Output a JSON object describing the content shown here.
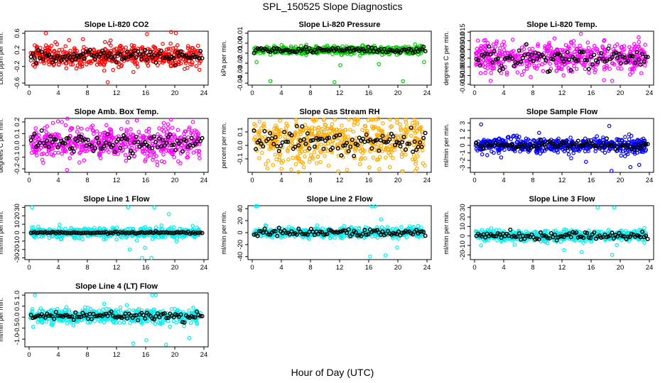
{
  "figure": {
    "title": "SPL_150525  Slope Diagnostics",
    "xlabel": "Hour of Day (UTC)"
  },
  "chart_data": [
    {
      "type": "scatter",
      "title": "Slope Li-820 CO2",
      "ylabel": "Licor ppm per min.",
      "color": "#ff0000",
      "xlim": [
        0,
        24
      ],
      "ylim": [
        -0.65,
        0.65
      ],
      "xticks": [
        "0",
        "4",
        "8",
        "12",
        "16",
        "20",
        "24"
      ],
      "yticks": [
        "-0.6",
        "-0.2",
        "0.2",
        "0.6"
      ],
      "ytick_values": [
        -0.6,
        -0.2,
        0.2,
        0.6
      ],
      "center": 0.05,
      "spread": 0.13,
      "mean_spread": 0.07,
      "outliers": [
        [
          2.3,
          0.6
        ],
        [
          10.8,
          -0.58
        ],
        [
          16.2,
          0.58
        ],
        [
          19.5,
          0.63
        ]
      ]
    },
    {
      "type": "scatter",
      "title": "Slope Li-820 Pressure",
      "ylabel": "kPa per min.",
      "color": "#00cc00",
      "xlim": [
        0,
        24
      ],
      "ylim": [
        -0.042,
        0.012
      ],
      "xticks": [
        "0",
        "4",
        "8",
        "12",
        "16",
        "20",
        "24"
      ],
      "yticks": [
        "-0.04",
        "-0.03",
        "-0.02",
        "-0.01",
        "0.00",
        "0.01"
      ],
      "ytick_values": [
        -0.04,
        -0.03,
        -0.02,
        -0.01,
        0.0,
        0.01
      ],
      "center": -0.007,
      "spread": 0.002,
      "mean_spread": 0.0015,
      "outliers": [
        [
          0.6,
          -0.019
        ],
        [
          2.5,
          -0.038
        ],
        [
          11.3,
          -0.039
        ],
        [
          12.1,
          -0.022
        ],
        [
          17.4,
          -0.021
        ],
        [
          20.7,
          -0.038
        ],
        [
          23.6,
          -0.019
        ]
      ]
    },
    {
      "type": "scatter",
      "title": "Slope Li-820 Temp.",
      "ylabel": "degrees C per min.",
      "color": "#ff00ff",
      "xlim": [
        0,
        24
      ],
      "ylim": [
        -0.0155,
        0.0155
      ],
      "xticks": [
        "0",
        "4",
        "8",
        "12",
        "16",
        "20",
        "24"
      ],
      "yticks": [
        "-0.015",
        "-0.010",
        "-0.005",
        "0.000",
        "0.005",
        "0.010",
        "0.015"
      ],
      "ytick_values": [
        -0.015,
        -0.01,
        -0.005,
        0.0,
        0.005,
        0.01,
        0.015
      ],
      "center": 0.0005,
      "spread": 0.0045,
      "mean_spread": 0.003,
      "outliers": [
        [
          14.6,
          0.014
        ],
        [
          2.2,
          -0.013
        ],
        [
          18.9,
          -0.013
        ]
      ]
    },
    {
      "type": "scatter",
      "title": "Slope Amb. Box Temp.",
      "ylabel": "degrees C per min.",
      "color": "#ff00ff",
      "xlim": [
        0,
        24
      ],
      "ylim": [
        -0.23,
        0.23
      ],
      "xticks": [
        "0",
        "4",
        "8",
        "12",
        "16",
        "20",
        "24"
      ],
      "yticks": [
        "-0.2",
        "-0.1",
        "0.0",
        "0.1",
        "0.2"
      ],
      "ytick_values": [
        -0.2,
        -0.1,
        0.0,
        0.1,
        0.2
      ],
      "center": 0.02,
      "spread": 0.07,
      "mean_spread": 0.045,
      "outliers": [
        [
          4.5,
          0.2
        ],
        [
          5.2,
          -0.21
        ],
        [
          22.5,
          0.2
        ]
      ]
    },
    {
      "type": "scatter",
      "title": "Slope Gas Stream RH",
      "ylabel": "percent per min.",
      "color": "#ffaa00",
      "xlim": [
        0,
        24
      ],
      "ylim": [
        -0.2,
        0.2
      ],
      "xticks": [
        "0",
        "4",
        "8",
        "12",
        "16",
        "20",
        "24"
      ],
      "yticks": [
        "-0.1",
        "0.0",
        "0.1"
      ],
      "ytick_values": [
        -0.1,
        0.0,
        0.1
      ],
      "center": 0.03,
      "spread": 0.09,
      "mean_spread": 0.05,
      "outliers": [
        [
          9.8,
          0.19
        ],
        [
          19.9,
          0.17
        ],
        [
          2.1,
          -0.17
        ],
        [
          23.7,
          -0.15
        ]
      ]
    },
    {
      "type": "scatter",
      "title": "Slope Sample Flow",
      "ylabel": "ml/min per min.",
      "color": "#0000ff",
      "xlim": [
        0,
        24
      ],
      "ylim": [
        -3.6,
        3.6
      ],
      "xticks": [
        "0",
        "4",
        "8",
        "12",
        "16",
        "20",
        "24"
      ],
      "yticks": [
        "-3",
        "-2",
        "-1",
        "0",
        "1",
        "2",
        "3"
      ],
      "ytick_values": [
        -3,
        -2,
        -1,
        0,
        1,
        2,
        3
      ],
      "center": 0.0,
      "spread": 0.55,
      "mean_spread": 0.3,
      "outliers": [
        [
          0.9,
          2.8
        ],
        [
          18.5,
          2.6
        ],
        [
          18.8,
          -3.4
        ],
        [
          21.4,
          -2.9
        ],
        [
          22.6,
          -2.6
        ],
        [
          15.3,
          -2.2
        ]
      ]
    },
    {
      "type": "scatter",
      "title": "Slope Line 1 Flow",
      "ylabel": "ml/min per min.",
      "color": "#00eeee",
      "xlim": [
        0,
        24
      ],
      "ylim": [
        -32,
        32
      ],
      "xticks": [
        "0",
        "4",
        "8",
        "12",
        "16",
        "20",
        "24"
      ],
      "yticks": [
        "-30",
        "-20",
        "-10",
        "0",
        "10",
        "20",
        "30"
      ],
      "ytick_values": [
        -30,
        -20,
        -10,
        0,
        10,
        20,
        30
      ],
      "center": 0.0,
      "spread": 3.0,
      "mean_spread": 0.6,
      "outliers": [
        [
          0.4,
          30
        ],
        [
          13.6,
          30
        ],
        [
          13.8,
          -20
        ],
        [
          15.5,
          -30
        ],
        [
          16.8,
          -30
        ],
        [
          17.2,
          30
        ],
        [
          19.2,
          22
        ],
        [
          15.9,
          -18
        ]
      ]
    },
    {
      "type": "scatter",
      "title": "Slope Line 2 Flow",
      "ylabel": "ml/min per min.",
      "color": "#00eeee",
      "xlim": [
        0,
        24
      ],
      "ylim": [
        -45,
        45
      ],
      "xticks": [
        "0",
        "4",
        "8",
        "12",
        "16",
        "20",
        "24"
      ],
      "yticks": [
        "-40",
        "-20",
        "0",
        "20",
        "40"
      ],
      "ytick_values": [
        -40,
        -20,
        0,
        20,
        40
      ],
      "center": 0.0,
      "spread": 4.0,
      "mean_spread": 3.0,
      "outliers": [
        [
          0.5,
          44
        ],
        [
          0.7,
          44
        ],
        [
          16.4,
          44
        ],
        [
          16.9,
          44
        ],
        [
          16.2,
          -40
        ],
        [
          18.3,
          -38
        ],
        [
          17.7,
          22
        ],
        [
          19.9,
          -25
        ]
      ]
    },
    {
      "type": "scatter",
      "title": "Slope Line 3 Flow",
      "ylabel": "ml/min per min.",
      "color": "#00eeee",
      "xlim": [
        0,
        24
      ],
      "ylim": [
        -25,
        32
      ],
      "xticks": [
        "0",
        "4",
        "8",
        "12",
        "16",
        "20",
        "24"
      ],
      "yticks": [
        "-20",
        "-10",
        "0",
        "10",
        "20",
        "30"
      ],
      "ytick_values": [
        -20,
        -10,
        0,
        10,
        20,
        30
      ],
      "center": 0.0,
      "spread": 3.0,
      "mean_spread": 2.0,
      "outliers": [
        [
          16.9,
          30
        ],
        [
          19.2,
          30
        ],
        [
          14.7,
          -17
        ],
        [
          18.9,
          -20
        ],
        [
          0.9,
          -10
        ],
        [
          12.3,
          -15
        ]
      ]
    },
    {
      "type": "scatter",
      "title": "Slope Line 4 (LT) Flow",
      "ylabel": "ml/min per min.",
      "color": "#00eeee",
      "xlim": [
        0,
        24
      ],
      "ylim": [
        -1.35,
        1.1
      ],
      "xticks": [
        "0",
        "4",
        "8",
        "12",
        "16",
        "20",
        "24"
      ],
      "yticks": [
        "-1.0",
        "-0.5",
        "0.0",
        "0.5",
        "1.0"
      ],
      "ytick_values": [
        -1.0,
        -0.5,
        0.0,
        0.5,
        1.0
      ],
      "center": 0.05,
      "spread": 0.17,
      "mean_spread": 0.1,
      "outliers": [
        [
          0.8,
          1.0
        ],
        [
          16.9,
          1.0
        ],
        [
          17.4,
          1.0
        ],
        [
          14.3,
          -1.2
        ],
        [
          18.8,
          -1.25
        ],
        [
          22.0,
          -0.95
        ],
        [
          16.1,
          -1.05
        ]
      ]
    }
  ]
}
